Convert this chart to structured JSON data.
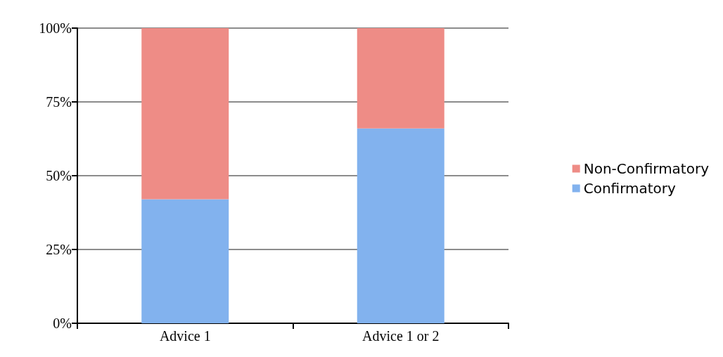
{
  "chart_data": {
    "type": "bar",
    "stacked": true,
    "categories": [
      "Advice 1",
      "Advice 1 or 2"
    ],
    "series": [
      {
        "name": "Confirmatory",
        "color": "#82b2ee",
        "values": [
          42,
          66
        ]
      },
      {
        "name": "Non-Confirmatory",
        "color": "#ee8c86",
        "values": [
          58,
          34
        ]
      }
    ],
    "ylim": [
      0,
      100
    ],
    "yticks": [
      {
        "value": 0,
        "label": "0%"
      },
      {
        "value": 25,
        "label": "25%"
      },
      {
        "value": 50,
        "label": "50%"
      },
      {
        "value": 75,
        "label": "75%"
      },
      {
        "value": 100,
        "label": "100%"
      }
    ],
    "grid": "y",
    "legend": "right"
  }
}
